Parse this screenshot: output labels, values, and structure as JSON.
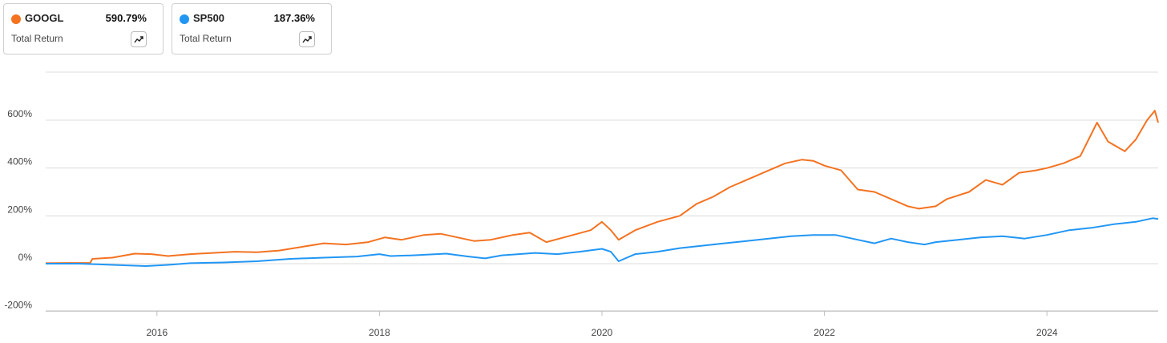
{
  "legend": [
    {
      "ticker": "GOOGL",
      "value": "590.79%",
      "subtitle": "Total Return",
      "color": "#f37321",
      "icon": "trend-up-icon"
    },
    {
      "ticker": "SP500",
      "value": "187.36%",
      "subtitle": "Total Return",
      "color": "#2196f3",
      "icon": "trend-up-icon"
    }
  ],
  "chart_data": {
    "type": "line",
    "x_unit": "year",
    "xlim": [
      2015.0,
      2025.0
    ],
    "ylim": [
      -200,
      800
    ],
    "yticks": [
      -200,
      0,
      200,
      400,
      600
    ],
    "ytick_labels": [
      "-200%",
      "0%",
      "200%",
      "400%",
      "600%"
    ],
    "xticks": [
      2016,
      2018,
      2020,
      2022,
      2024
    ],
    "xtick_labels": [
      "2016",
      "2018",
      "2020",
      "2022",
      "2024"
    ],
    "grid": true,
    "series": [
      {
        "name": "GOOGL",
        "color": "#f37321",
        "x": [
          2015.0,
          2015.2,
          2015.4,
          2015.42,
          2015.6,
          2015.8,
          2015.95,
          2016.1,
          2016.3,
          2016.5,
          2016.7,
          2016.9,
          2017.1,
          2017.3,
          2017.5,
          2017.7,
          2017.9,
          2018.05,
          2018.2,
          2018.4,
          2018.55,
          2018.7,
          2018.85,
          2019.0,
          2019.2,
          2019.35,
          2019.5,
          2019.7,
          2019.9,
          2020.0,
          2020.08,
          2020.15,
          2020.3,
          2020.5,
          2020.7,
          2020.85,
          2021.0,
          2021.15,
          2021.3,
          2021.5,
          2021.65,
          2021.8,
          2021.9,
          2022.0,
          2022.15,
          2022.3,
          2022.45,
          2022.6,
          2022.75,
          2022.85,
          2023.0,
          2023.1,
          2023.3,
          2023.45,
          2023.6,
          2023.75,
          2023.9,
          2024.0,
          2024.15,
          2024.3,
          2024.45,
          2024.55,
          2024.7,
          2024.8,
          2024.9,
          2024.97,
          2025.0
        ],
        "values": [
          2,
          3,
          3,
          20,
          25,
          42,
          40,
          32,
          40,
          45,
          50,
          48,
          55,
          70,
          85,
          80,
          90,
          110,
          100,
          120,
          125,
          110,
          95,
          100,
          120,
          130,
          90,
          115,
          140,
          175,
          140,
          100,
          140,
          175,
          200,
          250,
          280,
          320,
          350,
          390,
          420,
          435,
          430,
          410,
          390,
          310,
          300,
          270,
          240,
          230,
          240,
          270,
          300,
          350,
          330,
          380,
          390,
          400,
          420,
          450,
          590,
          510,
          470,
          520,
          600,
          640,
          590
        ]
      },
      {
        "name": "SP500",
        "color": "#2196f3",
        "x": [
          2015.0,
          2015.3,
          2015.6,
          2015.9,
          2016.1,
          2016.3,
          2016.6,
          2016.9,
          2017.2,
          2017.5,
          2017.8,
          2018.0,
          2018.1,
          2018.3,
          2018.6,
          2018.8,
          2018.95,
          2019.1,
          2019.4,
          2019.6,
          2019.8,
          2020.0,
          2020.08,
          2020.15,
          2020.3,
          2020.5,
          2020.7,
          2020.9,
          2021.1,
          2021.3,
          2021.5,
          2021.7,
          2021.9,
          2022.1,
          2022.3,
          2022.45,
          2022.6,
          2022.75,
          2022.9,
          2023.0,
          2023.2,
          2023.4,
          2023.6,
          2023.8,
          2024.0,
          2024.2,
          2024.4,
          2024.6,
          2024.8,
          2024.95,
          2025.0
        ],
        "values": [
          0,
          0,
          -5,
          -10,
          -5,
          2,
          5,
          10,
          20,
          25,
          30,
          40,
          32,
          35,
          42,
          30,
          22,
          35,
          45,
          40,
          50,
          62,
          50,
          10,
          40,
          50,
          65,
          75,
          85,
          95,
          105,
          115,
          120,
          120,
          100,
          85,
          105,
          90,
          80,
          90,
          100,
          110,
          115,
          105,
          120,
          140,
          150,
          165,
          175,
          190,
          187
        ]
      }
    ]
  }
}
